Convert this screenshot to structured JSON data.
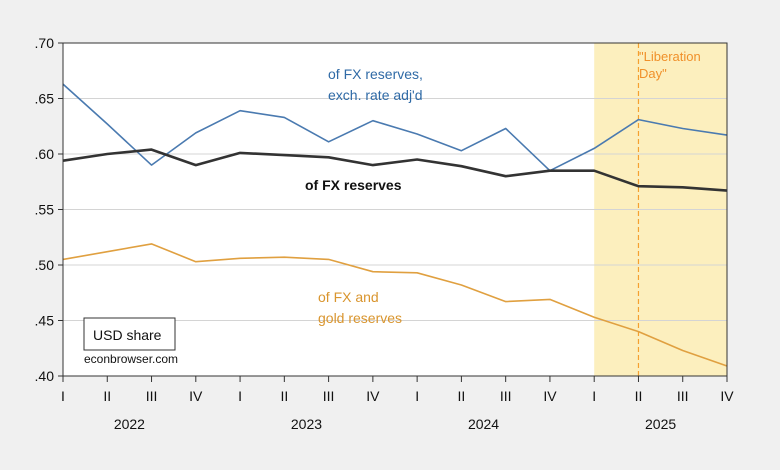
{
  "chart_data": {
    "type": "line",
    "title": "",
    "xlabel": "",
    "ylabel": "",
    "ylim": [
      0.4,
      0.7
    ],
    "yticks": [
      ".40",
      ".45",
      ".50",
      ".55",
      ".60",
      ".65",
      ".70"
    ],
    "ytick_values": [
      0.4,
      0.45,
      0.5,
      0.55,
      0.6,
      0.65,
      0.7
    ],
    "grid": true,
    "quarter_labels": [
      "I",
      "II",
      "III",
      "IV",
      "I",
      "II",
      "III",
      "IV",
      "I",
      "II",
      "III",
      "IV",
      "I",
      "II",
      "III",
      "IV"
    ],
    "years": [
      "2022",
      "2023",
      "2024",
      "2025"
    ],
    "x": [
      "2022Q1",
      "2022Q2",
      "2022Q3",
      "2022Q4",
      "2023Q1",
      "2023Q2",
      "2023Q3",
      "2023Q4",
      "2024Q1",
      "2024Q2",
      "2024Q3",
      "2024Q4",
      "2025Q1",
      "2025Q2",
      "2025Q3",
      "2025Q4"
    ],
    "series": [
      {
        "name": "of FX reserves, exch. rate adj'd",
        "color": "#4a7ab0",
        "values": [
          0.663,
          0.627,
          0.59,
          0.619,
          0.639,
          0.633,
          0.611,
          0.63,
          0.618,
          0.603,
          0.623,
          0.585,
          0.605,
          0.631,
          0.623,
          0.617
        ]
      },
      {
        "name": "of FX reserves",
        "color": "#333333",
        "values": [
          0.594,
          0.6,
          0.604,
          0.59,
          0.601,
          0.599,
          0.597,
          0.59,
          0.595,
          0.589,
          0.58,
          0.585,
          0.585,
          0.571,
          0.57,
          0.567
        ]
      },
      {
        "name": "of FX and gold reserves",
        "color": "#e0a040",
        "values": [
          0.505,
          0.512,
          0.519,
          0.503,
          0.506,
          0.507,
          0.505,
          0.494,
          0.493,
          0.482,
          0.467,
          0.469,
          0.453,
          0.44,
          0.423,
          0.409
        ]
      }
    ],
    "annotations": {
      "blue_label_line1": "of FX reserves,",
      "blue_label_line2": "exch. rate adj'd",
      "black_label": "of FX reserves",
      "orange_label_line1": "of FX and",
      "orange_label_line2": "gold reserves",
      "event_label_line1": "\"Liberation",
      "event_label_line2": "Day\"",
      "event_quarter": "2025Q2",
      "shaded_from": "2025Q1",
      "shaded_to": "2025Q4",
      "legend_box": "USD share",
      "source": "econbrowser.com"
    },
    "colors": {
      "shade": "#fcefbe",
      "event_line": "#f5a030",
      "event_text": "#f0902a",
      "blue_text": "#2f6aa6",
      "orange_text": "#d9952e",
      "grid": "#d4d4d4"
    }
  }
}
